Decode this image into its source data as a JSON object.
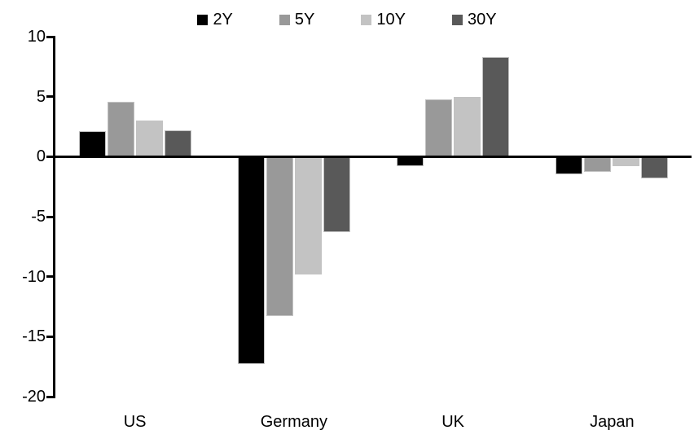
{
  "chart_data": {
    "type": "bar",
    "title": "",
    "xlabel": "",
    "ylabel": "",
    "categories": [
      "US",
      "Germany",
      "UK",
      "Japan"
    ],
    "series": [
      {
        "name": "2Y",
        "color": "#000000",
        "values": [
          2.1,
          -17.3,
          -0.8,
          -1.5
        ]
      },
      {
        "name": "5Y",
        "color": "#999999",
        "values": [
          4.6,
          -13.3,
          4.8,
          -1.3
        ]
      },
      {
        "name": "10Y",
        "color": "#c3c3c3",
        "values": [
          3.0,
          -9.8,
          5.0,
          -0.8
        ]
      },
      {
        "name": "30Y",
        "color": "#595959",
        "values": [
          2.2,
          -6.3,
          8.3,
          -1.8
        ]
      }
    ],
    "ylim": [
      -20,
      10
    ],
    "yticks": [
      10,
      5,
      0,
      -5,
      -10,
      -15,
      -20
    ],
    "ytick_labels": [
      "10",
      "5",
      "0",
      "-5",
      "-10",
      "-15",
      "-20"
    ],
    "grid": false,
    "legend_position": "top",
    "axis_color": "#000000",
    "background_color": "#ffffff"
  }
}
